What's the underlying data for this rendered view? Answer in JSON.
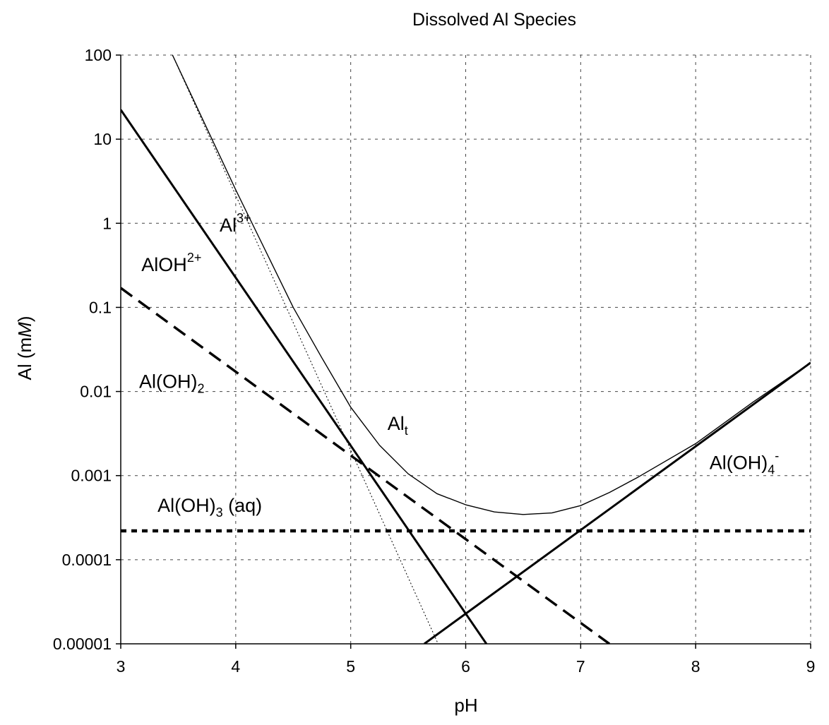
{
  "chart_data": {
    "type": "line",
    "title": "Dissolved Al Species",
    "xlabel": "pH",
    "ylabel": {
      "prefix": "Al (m",
      "italic": "M",
      "suffix": ")"
    },
    "xlim": [
      3,
      9
    ],
    "ylim": [
      1e-05,
      100
    ],
    "yscale": "log",
    "grid": true,
    "x_ticks": [
      3,
      4,
      5,
      6,
      7,
      8,
      9
    ],
    "x_tick_labels": [
      "3",
      "4",
      "5",
      "6",
      "7",
      "8",
      "9"
    ],
    "y_ticks": [
      1e-05,
      0.0001,
      0.001,
      0.01,
      0.1,
      1,
      10,
      100
    ],
    "y_tick_labels": [
      "0.00001",
      "0.0001",
      "0.001",
      "0.01",
      "0.1",
      "1",
      "10",
      "100"
    ],
    "series": [
      {
        "name": "AlOH2+",
        "style": "solid-thick",
        "x": [
          3,
          6.18
        ],
        "y": [
          22.4,
          1e-05
        ]
      },
      {
        "name": "Al(OH)2",
        "style": "dashed",
        "x": [
          3,
          7.25
        ],
        "y": [
          0.17,
          1e-05
        ]
      },
      {
        "name": "Al(OH)3 (aq)",
        "style": "dotted-thick",
        "x": [
          3,
          9
        ],
        "y": [
          0.00022,
          0.00022
        ]
      },
      {
        "name": "Al(OH)4-",
        "style": "solid-thick",
        "x": [
          5.64,
          9
        ],
        "y": [
          1e-05,
          0.022
        ]
      },
      {
        "name": "Al3+",
        "style": "dotted-thin",
        "x": [
          3.45,
          5.76
        ],
        "y": [
          100,
          1e-05
        ]
      },
      {
        "name": "Alt",
        "style": "solid-thin",
        "x": [
          3.45,
          4.0,
          4.5,
          4.75,
          5.0,
          5.25,
          5.5,
          5.75,
          6.0,
          6.25,
          6.5,
          6.75,
          7.0,
          7.25,
          7.5,
          8.0,
          8.5,
          9.0
        ],
        "y": [
          100,
          2.5,
          0.1,
          0.025,
          0.0065,
          0.0023,
          0.00105,
          0.00061,
          0.00045,
          0.00037,
          0.000345,
          0.00036,
          0.00044,
          0.00063,
          0.00096,
          0.0024,
          0.0075,
          0.022
        ]
      }
    ],
    "annotations": [
      {
        "id": "al3",
        "main": "Al",
        "sup": "3+",
        "at_x": 3.86,
        "at_y": 0.8
      },
      {
        "id": "aloh",
        "main": "AlOH",
        "sup": "2+",
        "at_x": 3.18,
        "at_y": 0.27
      },
      {
        "id": "aloh2",
        "main": "Al(OH)",
        "sub": "2",
        "at_x": 3.16,
        "at_y": 0.011
      },
      {
        "id": "alt",
        "main": "Al",
        "sub": "t",
        "at_x": 5.32,
        "at_y": 0.0035
      },
      {
        "id": "aloh4",
        "main": "Al(OH)",
        "sub": "4",
        "sup": "-",
        "at_x": 8.12,
        "at_y": 0.0012
      },
      {
        "id": "aloh3",
        "main": "Al(OH)",
        "sub": "3",
        "tail": " (aq)",
        "at_x": 3.32,
        "at_y": 0.00037
      }
    ]
  }
}
